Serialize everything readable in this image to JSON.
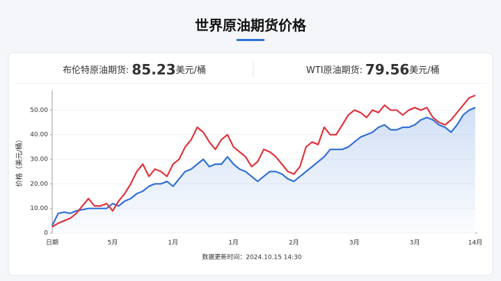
{
  "chart_data": {
    "type": "line",
    "title": "世界原油期货价格",
    "brent": {
      "label": "布伦特原油期货:",
      "price": "85.23",
      "unit": "美元/桶"
    },
    "wti": {
      "label": "WTI原油期货:",
      "price": "79.56",
      "unit": "美元/桶"
    },
    "y_label": "价格（美元/桶）",
    "footer": "数据更新时间：2024.10.15 14:30",
    "categories": [
      "日期",
      null,
      null,
      null,
      null,
      null,
      null,
      null,
      null,
      null,
      "5月",
      null,
      null,
      null,
      null,
      null,
      null,
      null,
      null,
      null,
      "1月",
      null,
      null,
      null,
      null,
      null,
      null,
      null,
      null,
      null,
      "1月",
      null,
      null,
      null,
      null,
      null,
      null,
      null,
      null,
      null,
      "2月",
      null,
      null,
      null,
      null,
      null,
      null,
      null,
      null,
      null,
      "3月",
      null,
      null,
      null,
      null,
      null,
      null,
      null,
      null,
      null,
      "3月",
      null,
      null,
      null,
      null,
      null,
      null,
      null,
      null,
      null,
      "14月"
    ],
    "series": [
      {
        "color": "#e0323a",
        "values": [
          2.5,
          4,
          5,
          6,
          8,
          11,
          14,
          11,
          11,
          12,
          9,
          13,
          16,
          20,
          25,
          28,
          23,
          26,
          25,
          23,
          28,
          30,
          35,
          38,
          43,
          41,
          37,
          34,
          38,
          40,
          35,
          33,
          31,
          27,
          29,
          34,
          33,
          31,
          28,
          25,
          24,
          27,
          35,
          37,
          36,
          43,
          40,
          40,
          44,
          48,
          50,
          49,
          47,
          50,
          49,
          52,
          50,
          50,
          48,
          50,
          51,
          50,
          51,
          47,
          45,
          44,
          46,
          49,
          52,
          55,
          56
        ]
      },
      {
        "color": "#2f6fd6",
        "area": true,
        "values": [
          3,
          8,
          8.5,
          8,
          9,
          9.5,
          10,
          10,
          10,
          10,
          12,
          11,
          13,
          14,
          16,
          17,
          19,
          20,
          20,
          21,
          19,
          22,
          25,
          26,
          28,
          30,
          27,
          28,
          28,
          31,
          28,
          26,
          25,
          23,
          21,
          23,
          25,
          25,
          24,
          22,
          21,
          23,
          25,
          27,
          29,
          31,
          34,
          34,
          34,
          35,
          37,
          39,
          40,
          41,
          43,
          44,
          42,
          42,
          43,
          43,
          44,
          46,
          47,
          46,
          44,
          43,
          41,
          44,
          48,
          50,
          51
        ]
      }
    ],
    "ylim": [
      0,
      58
    ],
    "yticks": [
      0,
      {
        "value": 10,
        "label": "10.00"
      },
      {
        "value": 20,
        "label": "20.00"
      },
      {
        "value": 30,
        "label": "30.00"
      },
      {
        "value": 40,
        "label": "40.00"
      },
      {
        "value": 50,
        "label": "50.00"
      }
    ],
    "grid": true
  }
}
